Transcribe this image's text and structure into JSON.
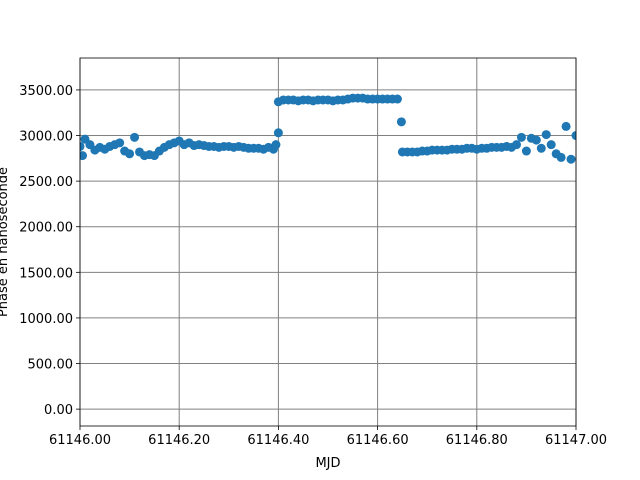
{
  "chart_data": {
    "type": "scatter",
    "xlabel": "MJD",
    "ylabel": "Phase en nanoseconde",
    "color": "#1f77b4",
    "grid": true,
    "xlim": [
      61146.0,
      61147.0
    ],
    "ylim": [
      -185,
      3850
    ],
    "xticks": [
      {
        "value": 61146.0,
        "label": "61146.00"
      },
      {
        "value": 61146.2,
        "label": "61146.20"
      },
      {
        "value": 61146.4,
        "label": "61146.40"
      },
      {
        "value": 61146.6,
        "label": "61146.60"
      },
      {
        "value": 61146.8,
        "label": "61146.80"
      },
      {
        "value": 61147.0,
        "label": "61147.00"
      }
    ],
    "yticks": [
      {
        "value": 0,
        "label": "0.00"
      },
      {
        "value": 500,
        "label": "500.00"
      },
      {
        "value": 1000,
        "label": "1000.00"
      },
      {
        "value": 1500,
        "label": "1500.00"
      },
      {
        "value": 2000,
        "label": "2000.00"
      },
      {
        "value": 2500,
        "label": "2500.00"
      },
      {
        "value": 3000,
        "label": "3000.00"
      },
      {
        "value": 3500,
        "label": "3500.00"
      }
    ],
    "x": [
      61146.0,
      61146.01,
      61146.02,
      61146.03,
      61146.04,
      61146.05,
      61146.06,
      61146.07,
      61146.08,
      61146.09,
      61146.1,
      61146.11,
      61146.12,
      61146.13,
      61146.14,
      61146.15,
      61146.16,
      61146.17,
      61146.18,
      61146.19,
      61146.2,
      61146.21,
      61146.22,
      61146.23,
      61146.24,
      61146.25,
      61146.26,
      61146.27,
      61146.28,
      61146.29,
      61146.3,
      61146.31,
      61146.32,
      61146.33,
      61146.34,
      61146.35,
      61146.36,
      61146.37,
      61146.38,
      61146.39,
      61146.4,
      61146.41,
      61146.42,
      61146.43,
      61146.44,
      61146.45,
      61146.46,
      61146.47,
      61146.48,
      61146.49,
      61146.5,
      61146.51,
      61146.52,
      61146.53,
      61146.54,
      61146.55,
      61146.56,
      61146.57,
      61146.58,
      61146.59,
      61146.6,
      61146.61,
      61146.62,
      61146.63,
      61146.64,
      61146.65,
      61146.66,
      61146.67,
      61146.68,
      61146.69,
      61146.7,
      61146.71,
      61146.72,
      61146.73,
      61146.74,
      61146.75,
      61146.76,
      61146.77,
      61146.78,
      61146.79,
      61146.8,
      61146.81,
      61146.82,
      61146.83,
      61146.84,
      61146.85,
      61146.86,
      61146.87,
      61146.88,
      61146.89,
      61146.9,
      61146.91,
      61146.92,
      61146.93,
      61146.94,
      61146.95,
      61146.96,
      61146.97,
      61146.98,
      61146.99,
      61147.0,
      61146.4,
      61146.648,
      61146.005,
      61146.395
    ],
    "values": [
      2880,
      2960,
      2900,
      2840,
      2870,
      2850,
      2880,
      2900,
      2920,
      2830,
      2800,
      2980,
      2820,
      2780,
      2790,
      2780,
      2830,
      2870,
      2900,
      2920,
      2940,
      2900,
      2920,
      2890,
      2900,
      2890,
      2880,
      2880,
      2870,
      2880,
      2880,
      2870,
      2880,
      2870,
      2860,
      2860,
      2860,
      2850,
      2870,
      2850,
      3370,
      3390,
      3390,
      3390,
      3380,
      3390,
      3390,
      3380,
      3390,
      3390,
      3390,
      3380,
      3390,
      3390,
      3400,
      3410,
      3410,
      3410,
      3400,
      3400,
      3400,
      3400,
      3400,
      3400,
      3400,
      2820,
      2820,
      2820,
      2820,
      2830,
      2830,
      2840,
      2840,
      2840,
      2840,
      2850,
      2850,
      2850,
      2860,
      2860,
      2850,
      2860,
      2860,
      2870,
      2870,
      2870,
      2880,
      2870,
      2900,
      2980,
      2830,
      2970,
      2950,
      2860,
      3010,
      2900,
      2800,
      2760,
      3100,
      2740,
      3000,
      3030,
      3150,
      2780,
      2900
    ]
  }
}
